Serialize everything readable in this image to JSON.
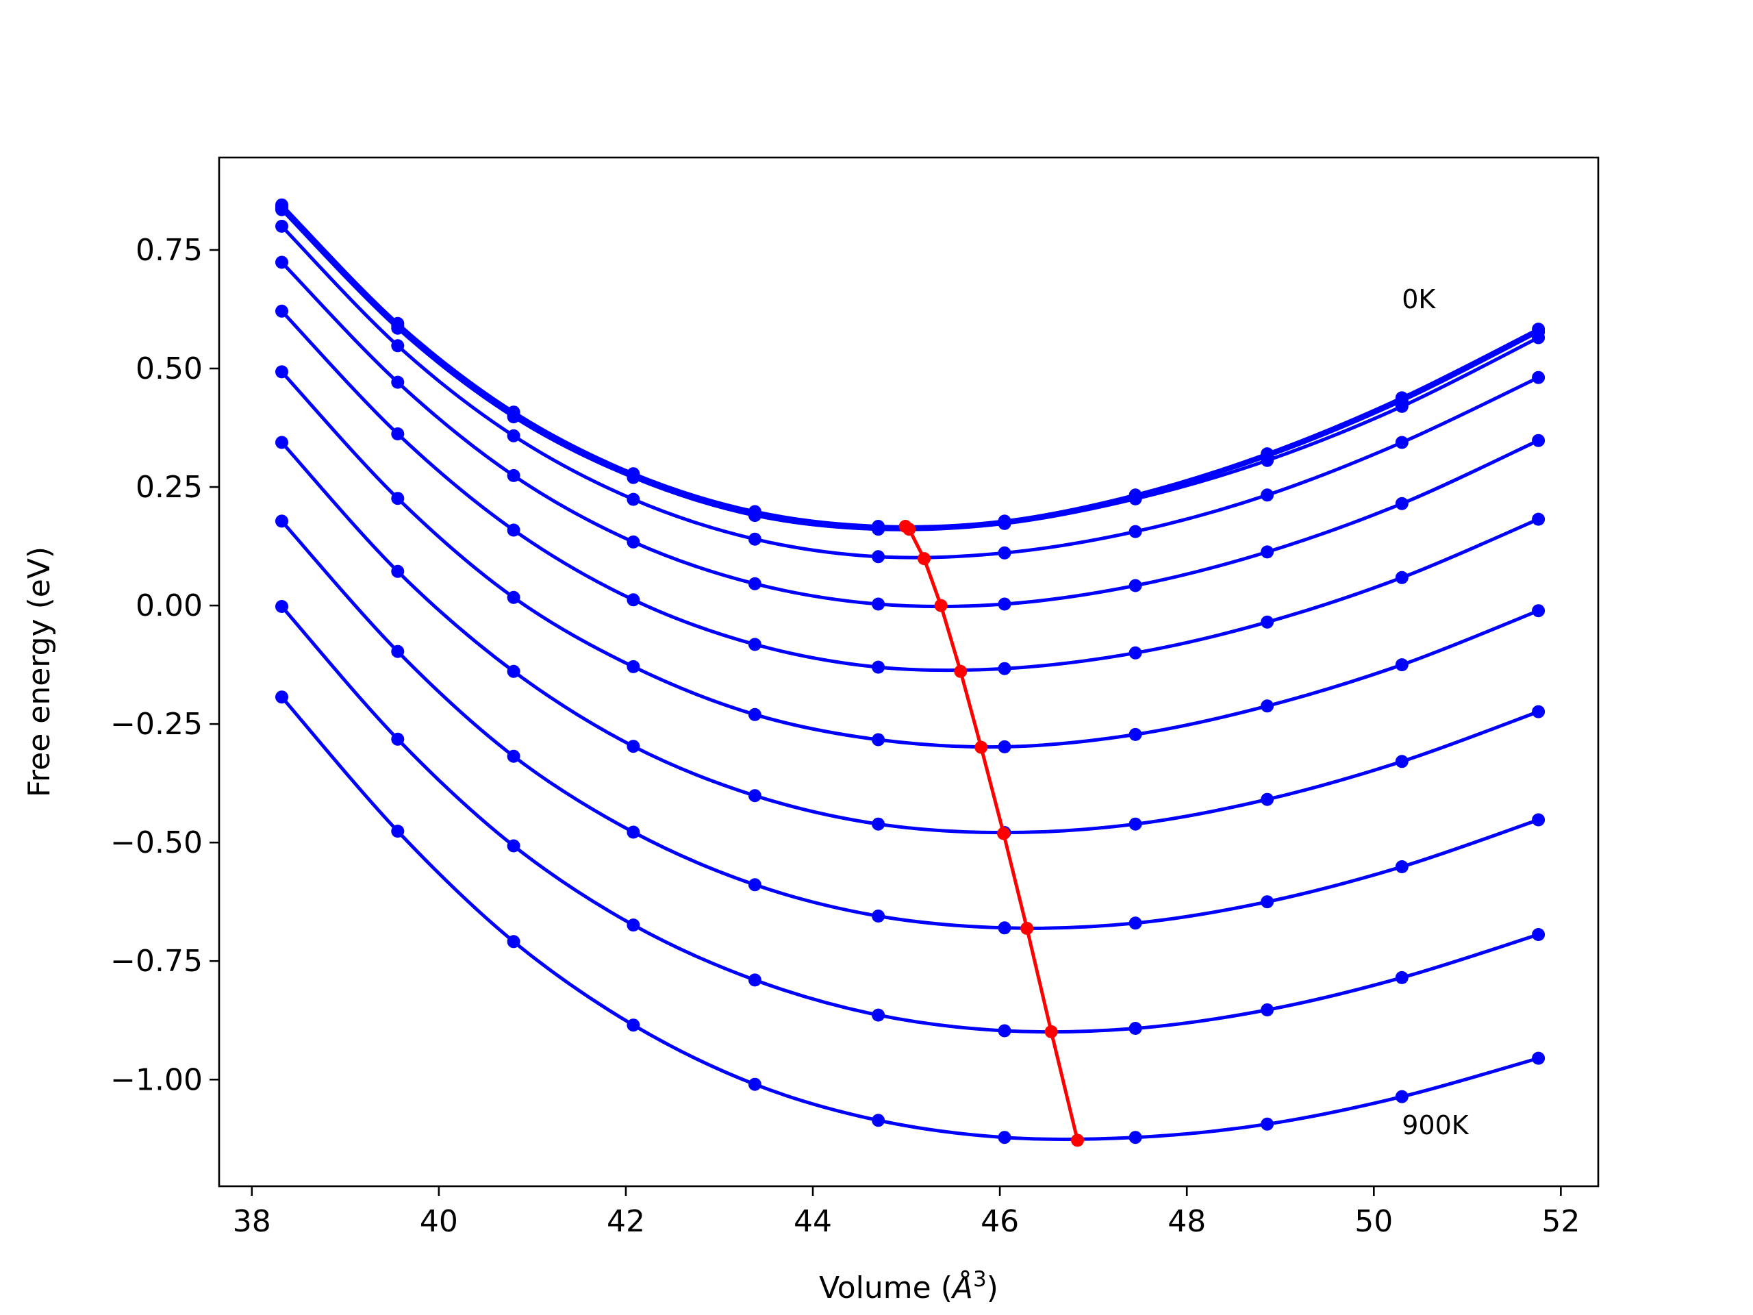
{
  "chart_data": {
    "type": "line",
    "title": "",
    "xlabel_main": "Volume (",
    "xlabel_angstrom": "Å",
    "xlabel_exp": "3",
    "xlabel_close": ")",
    "ylabel": "Free energy (eV)",
    "xlim": [
      37.65,
      52.4
    ],
    "ylim": [
      -1.225,
      0.945
    ],
    "xticks": [
      38,
      40,
      42,
      44,
      46,
      48,
      50,
      52
    ],
    "xtick_labels": [
      "38",
      "40",
      "42",
      "44",
      "46",
      "48",
      "50",
      "52"
    ],
    "yticks": [
      0.75,
      0.5,
      0.25,
      0.0,
      -0.25,
      -0.5,
      -0.75,
      -1.0
    ],
    "ytick_labels": [
      "0.75",
      "0.50",
      "0.25",
      "0.00",
      "−0.25",
      "−0.50",
      "−0.75",
      "−1.00"
    ],
    "annotations": [
      {
        "text": "0K",
        "x": 50.3,
        "y": 0.627
      },
      {
        "text": "900K",
        "x": 50.3,
        "y": -1.115
      }
    ],
    "x": [
      38.32,
      39.56,
      40.8,
      42.08,
      43.38,
      44.7,
      46.05,
      47.45,
      48.86,
      50.3,
      51.76
    ],
    "series": [
      {
        "color": "#0000ff",
        "values": [
          0.845,
          0.595,
          0.408,
          0.278,
          0.198,
          0.167,
          0.178,
          0.233,
          0.32,
          0.438,
          0.583
        ]
      },
      {
        "color": "#0000ff",
        "values": [
          0.84,
          0.59,
          0.403,
          0.274,
          0.194,
          0.164,
          0.176,
          0.23,
          0.315,
          0.432,
          0.577
        ]
      },
      {
        "color": "#0000ff",
        "values": [
          0.835,
          0.585,
          0.398,
          0.27,
          0.19,
          0.161,
          0.173,
          0.225,
          0.306,
          0.42,
          0.565
        ]
      },
      {
        "color": "#0000ff",
        "values": [
          0.8,
          0.548,
          0.358,
          0.224,
          0.14,
          0.103,
          0.111,
          0.156,
          0.233,
          0.344,
          0.481
        ]
      },
      {
        "color": "#0000ff",
        "values": [
          0.724,
          0.471,
          0.274,
          0.134,
          0.046,
          0.003,
          0.003,
          0.042,
          0.113,
          0.215,
          0.348
        ]
      },
      {
        "color": "#0000ff",
        "values": [
          0.621,
          0.362,
          0.159,
          0.012,
          -0.082,
          -0.13,
          -0.133,
          -0.1,
          -0.035,
          0.059,
          0.182
        ]
      },
      {
        "color": "#0000ff",
        "values": [
          0.493,
          0.226,
          0.017,
          -0.129,
          -0.23,
          -0.283,
          -0.298,
          -0.272,
          -0.212,
          -0.125,
          -0.011
        ]
      },
      {
        "color": "#0000ff",
        "values": [
          0.344,
          0.072,
          -0.139,
          -0.297,
          -0.401,
          -0.461,
          -0.479,
          -0.461,
          -0.409,
          -0.329,
          -0.224
        ]
      },
      {
        "color": "#0000ff",
        "values": [
          0.178,
          -0.097,
          -0.318,
          -0.478,
          -0.589,
          -0.655,
          -0.68,
          -0.67,
          -0.625,
          -0.551,
          -0.452
        ]
      },
      {
        "color": "#0000ff",
        "values": [
          -0.002,
          -0.282,
          -0.507,
          -0.674,
          -0.79,
          -0.864,
          -0.897,
          -0.892,
          -0.853,
          -0.785,
          -0.694
        ]
      },
      {
        "color": "#0000ff",
        "values": [
          -0.193,
          -0.476,
          -0.709,
          -0.885,
          -1.01,
          -1.086,
          -1.122,
          -1.122,
          -1.094,
          -1.036,
          -0.955
        ]
      }
    ],
    "minimum_curve": {
      "color": "#ff0000",
      "x": [
        44.99,
        45.03,
        45.19,
        45.37,
        45.58,
        45.8,
        46.04,
        46.29,
        46.55,
        46.83
      ],
      "y": [
        0.167,
        0.161,
        0.099,
        0.0,
        -0.139,
        -0.299,
        -0.481,
        -0.681,
        -0.899,
        -1.128
      ]
    }
  }
}
